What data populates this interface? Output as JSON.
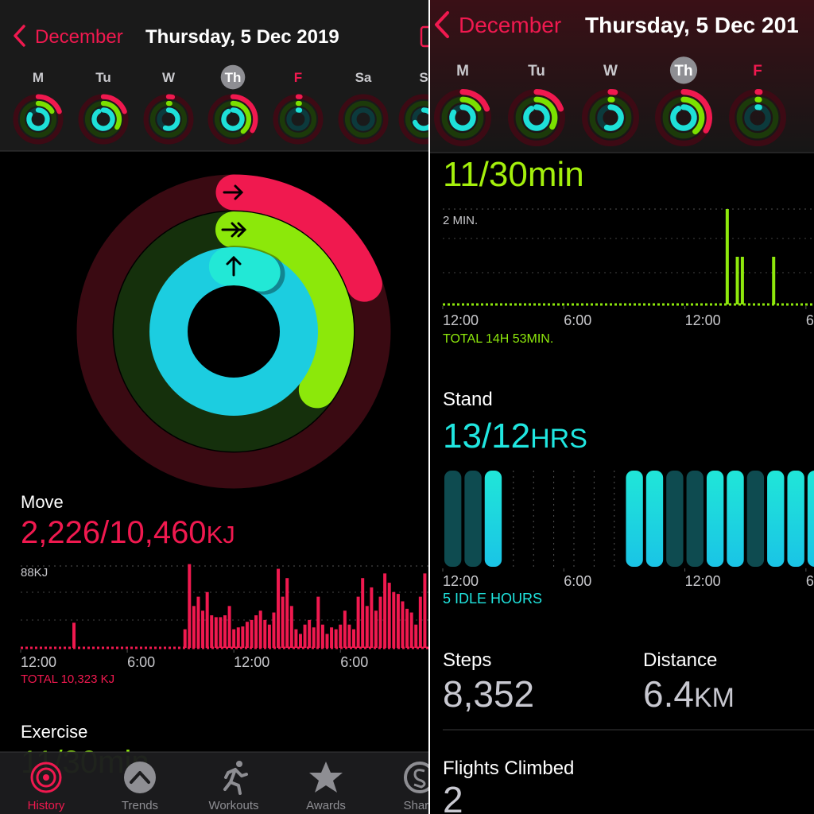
{
  "left": {
    "header": {
      "back": "December",
      "date": "Thursday, 5 Dec 2019"
    },
    "week": [
      "M",
      "Tu",
      "W",
      "Th",
      "F",
      "Sa",
      "S"
    ],
    "move": {
      "label": "Move",
      "value": "2,226/10,460",
      "unit": "KJ"
    },
    "move_chart": {
      "type": "bar",
      "xlim": [
        0,
        23
      ],
      "ylim": [
        0,
        88
      ],
      "yticks": [
        {
          "value": 88,
          "label": "88KJ"
        }
      ],
      "xticks": [
        {
          "value": 0,
          "label": "12:00"
        },
        {
          "value": 6,
          "label": "6:00"
        },
        {
          "value": 12,
          "label": "12:00"
        },
        {
          "value": 18,
          "label": "6:00"
        }
      ],
      "color": "#f0194f",
      "x": [
        3,
        9.25,
        9.5,
        9.75,
        10,
        10.25,
        10.5,
        10.75,
        11,
        11.25,
        11.5,
        11.75,
        12,
        12.25,
        12.5,
        12.75,
        13,
        13.25,
        13.5,
        13.75,
        14,
        14.25,
        14.5,
        14.75,
        15,
        15.25,
        15.5,
        15.75,
        16,
        16.25,
        16.5,
        16.75,
        17,
        17.25,
        17.5,
        17.75,
        18,
        18.25,
        18.5,
        18.75,
        19,
        19.25,
        19.5,
        19.75,
        20,
        20.25,
        20.5,
        20.75,
        21,
        21.25,
        21.5,
        21.75,
        22,
        22.25,
        22.5,
        22.75
      ],
      "values": [
        27,
        20,
        90,
        45,
        55,
        40,
        60,
        35,
        33,
        33,
        35,
        45,
        20,
        22,
        23,
        28,
        30,
        35,
        40,
        30,
        25,
        38,
        85,
        55,
        75,
        45,
        20,
        15,
        25,
        30,
        22,
        55,
        25,
        15,
        22,
        20,
        25,
        40,
        25,
        20,
        55,
        75,
        45,
        65,
        40,
        55,
        80,
        70,
        60,
        58,
        50,
        42,
        38,
        25,
        55,
        80
      ],
      "total": "TOTAL 10,323 KJ"
    },
    "exercise": {
      "label": "Exercise"
    },
    "tabs": [
      "History",
      "Trends",
      "Workouts",
      "Awards",
      "Shari"
    ]
  },
  "right": {
    "header": {
      "back": "December",
      "date": "Thursday, 5 Dec 201"
    },
    "week": [
      "M",
      "Tu",
      "W",
      "Th",
      "F"
    ],
    "exercise": {
      "value": "11/30min"
    },
    "exercise_chart": {
      "type": "bar",
      "xlim": [
        0,
        18.4
      ],
      "ylim": [
        0,
        2
      ],
      "yticks": [
        {
          "value": 2,
          "label": "2 MIN."
        }
      ],
      "xticks": [
        {
          "value": 0,
          "label": "12:00"
        },
        {
          "value": 6,
          "label": "6:00"
        },
        {
          "value": 12,
          "label": "12:00"
        },
        {
          "value": 18,
          "label": "6"
        }
      ],
      "color": "#8ee80c",
      "x": [
        14.1,
        14.6,
        14.85,
        16.4
      ],
      "values": [
        2,
        1,
        1,
        1
      ],
      "total": "TOTAL 14H 53MIN."
    },
    "stand": {
      "label": "Stand",
      "value": "13/12",
      "unit": "HRS"
    },
    "stand_chart": {
      "type": "bar",
      "xlim": [
        0,
        18.4
      ],
      "xticks": [
        {
          "value": 0,
          "label": "12:00"
        },
        {
          "value": 6,
          "label": "6:00"
        },
        {
          "value": 12,
          "label": "12:00"
        },
        {
          "value": 18,
          "label": "6"
        }
      ],
      "x": [
        0,
        1,
        2,
        3,
        4,
        5,
        6,
        7,
        8,
        9,
        10,
        11,
        12,
        13,
        14,
        15,
        16,
        17,
        18
      ],
      "values": [
        0,
        0,
        1,
        null,
        null,
        null,
        null,
        null,
        null,
        1,
        1,
        0,
        0,
        1,
        1,
        0,
        1,
        1,
        1
      ],
      "idle": "5 IDLE HOURS"
    },
    "steps": {
      "label": "Steps",
      "value": "8,352"
    },
    "distance": {
      "label": "Distance",
      "value": "6.4",
      "unit": "KM"
    },
    "flights": {
      "label": "Flights Climbed",
      "value": "2"
    }
  }
}
